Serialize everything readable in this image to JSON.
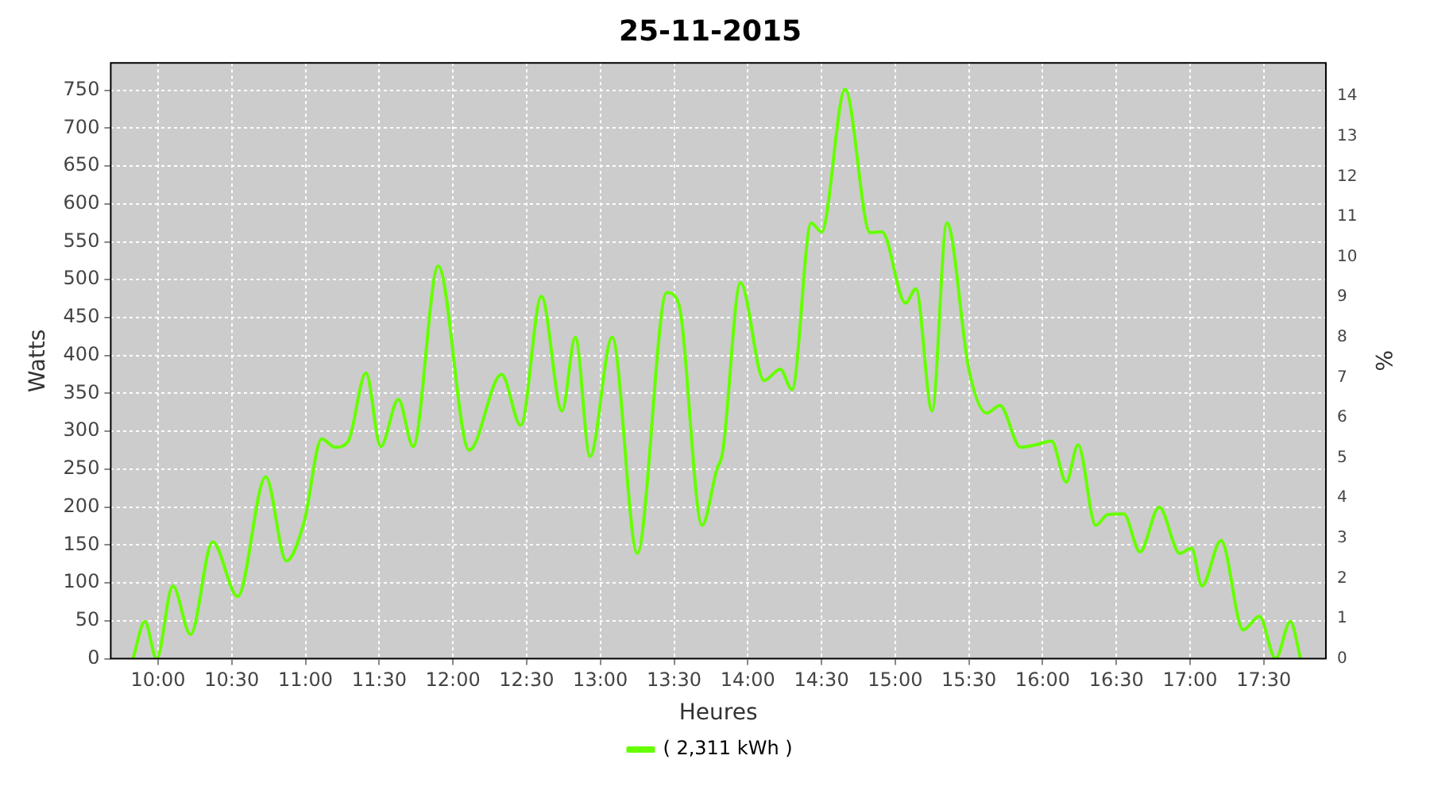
{
  "chart_data": {
    "type": "line",
    "title": "25-11-2015",
    "xlabel": "Heures",
    "ylabel": "Watts",
    "y2label": "%",
    "xlim": [
      9.679,
      17.921
    ],
    "xticks": [
      {
        "value": 10,
        "label": "10:00"
      },
      {
        "value": 10.5,
        "label": "10:30"
      },
      {
        "value": 11,
        "label": "11:00"
      },
      {
        "value": 11.5,
        "label": "11:30"
      },
      {
        "value": 12,
        "label": "12:00"
      },
      {
        "value": 12.5,
        "label": "12:30"
      },
      {
        "value": 13,
        "label": "13:00"
      },
      {
        "value": 13.5,
        "label": "13:30"
      },
      {
        "value": 14,
        "label": "14:00"
      },
      {
        "value": 14.5,
        "label": "14:30"
      },
      {
        "value": 15,
        "label": "15:00"
      },
      {
        "value": 15.5,
        "label": "15:30"
      },
      {
        "value": 16,
        "label": "16:00"
      },
      {
        "value": 16.5,
        "label": "16:30"
      },
      {
        "value": 17,
        "label": "17:00"
      },
      {
        "value": 17.5,
        "label": "17:30"
      }
    ],
    "ylim": [
      0,
      786
    ],
    "yticks": [
      0,
      50,
      100,
      150,
      200,
      250,
      300,
      350,
      400,
      450,
      500,
      550,
      600,
      650,
      700,
      750
    ],
    "y2lim": [
      0,
      14.83
    ],
    "y2ticks": [
      0,
      1,
      2,
      3,
      4,
      5,
      6,
      7,
      8,
      9,
      10,
      11,
      12,
      13,
      14
    ],
    "grid": true,
    "legend": "bottom",
    "marker": "none",
    "line_style": "solid",
    "series": [
      {
        "name": "( 2,311 kWh )",
        "color": "#66ff00",
        "x": [
          9.83,
          9.91,
          9.99,
          10.1,
          10.22,
          10.37,
          10.54,
          10.73,
          10.87,
          10.99,
          11.11,
          11.2,
          11.29,
          11.41,
          11.51,
          11.63,
          11.73,
          11.9,
          12.11,
          12.33,
          12.46,
          12.6,
          12.74,
          12.83,
          12.93,
          13.08,
          13.25,
          13.45,
          13.53,
          13.69,
          13.79,
          13.83,
          13.95,
          14.11,
          14.22,
          14.3,
          14.43,
          14.5,
          14.66,
          14.83,
          14.91,
          15.07,
          15.14,
          15.25,
          15.35,
          15.5,
          15.62,
          15.71,
          15.85,
          15.95,
          16.06,
          16.16,
          16.24,
          16.36,
          16.44,
          16.55,
          16.66,
          16.79,
          16.93,
          17.01,
          17.08,
          17.21,
          17.36,
          17.47,
          17.58,
          17.68,
          17.75
        ],
        "values": [
          0,
          49,
          0,
          96,
          32,
          154,
          82,
          240,
          129,
          180,
          290,
          279,
          287,
          377,
          280,
          342,
          280,
          518,
          275,
          375,
          308,
          478,
          327,
          424,
          267,
          424,
          139,
          483,
          469,
          176,
          250,
          273,
          496,
          367,
          382,
          355,
          575,
          563,
          751,
          562,
          563,
          469,
          488,
          327,
          575,
          381,
          324,
          334,
          279,
          282,
          287,
          233,
          282,
          176,
          190,
          191,
          141,
          200,
          139,
          146,
          96,
          156,
          38,
          56,
          0,
          49,
          0
        ]
      }
    ]
  }
}
